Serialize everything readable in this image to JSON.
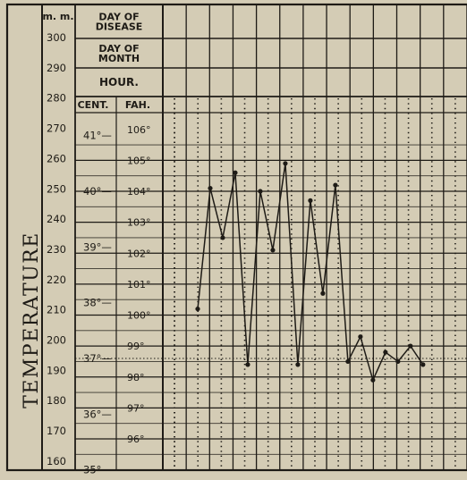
{
  "chart_data": {
    "type": "line",
    "ylabel": "TEMPERATURE",
    "header_rows": [
      "DAY OF DISEASE",
      "DAY OF MONTH",
      "HOUR."
    ],
    "scales": {
      "mm": {
        "label": "m. m.",
        "ticks": [
          300,
          290,
          280,
          270,
          260,
          250,
          240,
          230,
          220,
          210,
          200,
          190,
          180,
          170,
          160
        ]
      },
      "cent": {
        "label": "CENT.",
        "ticks": [
          "41°",
          "40°",
          "39°",
          "38°",
          "37°",
          "36°",
          "35°"
        ]
      },
      "fah": {
        "label": "FAH.",
        "ticks": [
          "106°",
          "105°",
          "104°",
          "103°",
          "102°",
          "101°",
          "100°",
          "99°",
          "98°",
          "97°",
          "96°"
        ]
      }
    },
    "ylim_fahrenheit": [
      94.4,
      105.8
    ],
    "normal_line_fahrenheit": 98.6,
    "series": [
      {
        "values": [
          100.2,
          104.1,
          102.5,
          104.6,
          98.4,
          104.0,
          102.1,
          104.9,
          98.4,
          103.7,
          100.7,
          104.2,
          98.5,
          99.3,
          97.9,
          98.8,
          98.5,
          99.0,
          98.4
        ]
      }
    ]
  }
}
